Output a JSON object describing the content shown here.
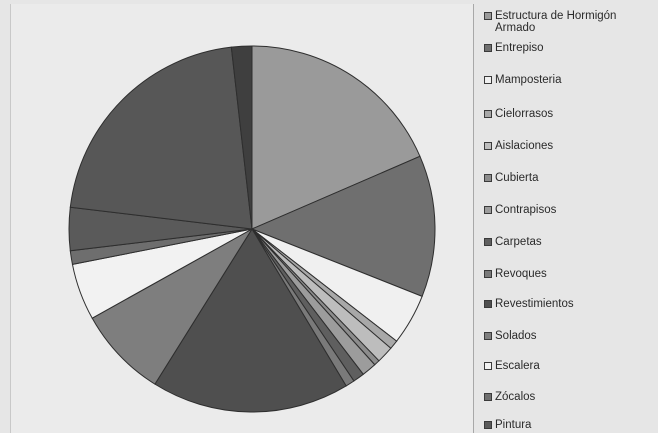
{
  "chart_data": {
    "type": "pie",
    "legend_position": "right",
    "slices": [
      {
        "label": "Estructura de Hormigón Armado",
        "value": 18.5,
        "color": "#9a9a9a"
      },
      {
        "label": "Entrepiso",
        "value": 12.5,
        "color": "#6f6f6f"
      },
      {
        "label": "Mamposteria",
        "value": 4.5,
        "color": "#f0f0f0"
      },
      {
        "label": "Cielorrasos",
        "value": 0.8,
        "color": "#a8a8a8"
      },
      {
        "label": "Aislaciones",
        "value": 1.5,
        "color": "#bdbdbd"
      },
      {
        "label": "Cubierta",
        "value": 0.5,
        "color": "#8c8c8c"
      },
      {
        "label": "Contrapisos",
        "value": 1.3,
        "color": "#9c9c9c"
      },
      {
        "label": "Carpetas",
        "value": 1.0,
        "color": "#5f5f5f"
      },
      {
        "label": "Revoques",
        "value": 0.8,
        "color": "#7a7a7a"
      },
      {
        "label": "Revestimientos",
        "value": 17.5,
        "color": "#4f4f4f"
      },
      {
        "label": "Solados",
        "value": 8.0,
        "color": "#7e7e7e"
      },
      {
        "label": "Escalera",
        "value": 5.0,
        "color": "#f2f2f2"
      },
      {
        "label": "Zócalos",
        "value": 1.2,
        "color": "#6e6e6e"
      },
      {
        "label": "Pintura",
        "value": 3.8,
        "color": "#5a5a5a"
      },
      {
        "label": "",
        "value": 21.3,
        "color": "#575757"
      },
      {
        "label": "",
        "value": 1.8,
        "color": "#3f3f3f"
      }
    ]
  }
}
